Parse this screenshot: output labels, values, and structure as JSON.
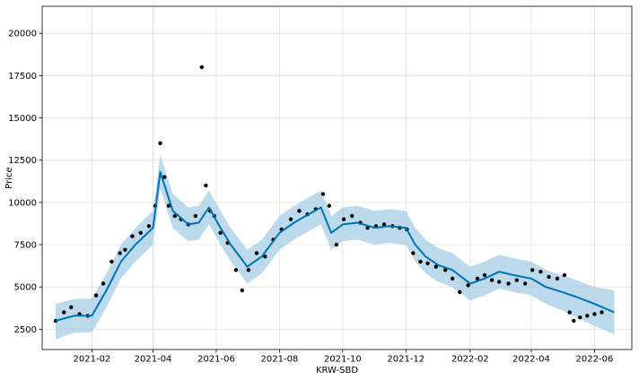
{
  "chart_data": {
    "type": "line",
    "title": "",
    "xlabel": "KRW-SBD",
    "ylabel": "Price",
    "x_ticks": [
      "2021-02",
      "2021-04",
      "2021-06",
      "2021-08",
      "2021-10",
      "2021-12",
      "2022-02",
      "2022-04",
      "2022-06"
    ],
    "y_ticks": [
      2500,
      5000,
      7500,
      10000,
      12500,
      15000,
      17500,
      20000
    ],
    "xlim": [
      "2020-12-15",
      "2022-07-07"
    ],
    "ylim": [
      1300,
      21600
    ],
    "grid": true,
    "colors": {
      "forecast": "#0072B2",
      "interval": "#a6cde6",
      "observed": "#000000"
    },
    "series": [
      {
        "role": "forecast",
        "x": [
          "2020-12-28",
          "2021-01-15",
          "2021-02-01",
          "2021-02-15",
          "2021-03-01",
          "2021-03-15",
          "2021-04-01",
          "2021-04-08",
          "2021-04-20",
          "2021-05-05",
          "2021-05-15",
          "2021-05-25",
          "2021-06-05",
          "2021-06-15",
          "2021-07-01",
          "2021-07-15",
          "2021-08-01",
          "2021-08-15",
          "2021-09-01",
          "2021-09-10",
          "2021-09-20",
          "2021-10-01",
          "2021-10-15",
          "2021-11-01",
          "2021-11-15",
          "2021-12-01",
          "2021-12-10",
          "2021-12-20",
          "2022-01-01",
          "2022-01-15",
          "2022-02-01",
          "2022-02-15",
          "2022-03-01",
          "2022-03-15",
          "2022-04-01",
          "2022-04-15",
          "2022-05-01",
          "2022-05-15",
          "2022-06-01",
          "2022-06-20"
        ],
        "values": [
          3000,
          3300,
          3300,
          4800,
          6500,
          7500,
          8500,
          11800,
          9500,
          8700,
          8800,
          9700,
          8500,
          7500,
          6200,
          6800,
          8200,
          8800,
          9400,
          9700,
          8200,
          8700,
          8800,
          8500,
          8600,
          8500,
          7500,
          6800,
          6300,
          6000,
          5200,
          5500,
          5900,
          5700,
          5500,
          5000,
          4700,
          4400,
          4000,
          3500
        ]
      },
      {
        "role": "interval",
        "x": [
          "2020-12-28",
          "2021-01-15",
          "2021-02-01",
          "2021-02-15",
          "2021-03-01",
          "2021-03-15",
          "2021-04-01",
          "2021-04-08",
          "2021-04-20",
          "2021-05-05",
          "2021-05-15",
          "2021-05-25",
          "2021-06-05",
          "2021-06-15",
          "2021-07-01",
          "2021-07-15",
          "2021-08-01",
          "2021-08-15",
          "2021-09-01",
          "2021-09-10",
          "2021-09-20",
          "2021-10-01",
          "2021-10-15",
          "2021-11-01",
          "2021-11-15",
          "2021-12-01",
          "2021-12-10",
          "2021-12-20",
          "2022-01-01",
          "2022-01-15",
          "2022-02-01",
          "2022-02-15",
          "2022-03-01",
          "2022-03-15",
          "2022-04-01",
          "2022-04-15",
          "2022-05-01",
          "2022-05-15",
          "2022-06-01",
          "2022-06-20"
        ],
        "upper": [
          4000,
          4300,
          4300,
          5800,
          7500,
          8500,
          9500,
          12800,
          10500,
          9700,
          9800,
          10700,
          9500,
          8500,
          7200,
          7800,
          9200,
          9800,
          10400,
          10700,
          9200,
          9700,
          9800,
          9500,
          9600,
          9500,
          8500,
          7800,
          7300,
          7000,
          6200,
          6500,
          6900,
          6700,
          6500,
          6000,
          5700,
          5400,
          5000,
          4800
        ],
        "lower": [
          1900,
          2300,
          2300,
          3800,
          5500,
          6500,
          7500,
          10800,
          8500,
          7700,
          7800,
          8700,
          7500,
          6500,
          5200,
          5800,
          7200,
          7800,
          8400,
          8700,
          7200,
          7700,
          7800,
          7500,
          7600,
          7500,
          6500,
          5800,
          5300,
          5000,
          4200,
          4500,
          4900,
          4700,
          4500,
          4000,
          3600,
          3200,
          2700,
          2200
        ]
      },
      {
        "role": "observed",
        "x": [
          "2020-12-28",
          "2021-01-05",
          "2021-01-12",
          "2021-01-20",
          "2021-01-28",
          "2021-02-05",
          "2021-02-12",
          "2021-02-20",
          "2021-02-28",
          "2021-03-05",
          "2021-03-12",
          "2021-03-20",
          "2021-03-28",
          "2021-04-03",
          "2021-04-08",
          "2021-04-12",
          "2021-04-16",
          "2021-04-22",
          "2021-04-28",
          "2021-05-05",
          "2021-05-12",
          "2021-05-18",
          "2021-05-22",
          "2021-05-26",
          "2021-05-30",
          "2021-06-05",
          "2021-06-12",
          "2021-06-20",
          "2021-06-26",
          "2021-07-02",
          "2021-07-10",
          "2021-07-18",
          "2021-07-26",
          "2021-08-03",
          "2021-08-12",
          "2021-08-20",
          "2021-08-28",
          "2021-09-05",
          "2021-09-12",
          "2021-09-18",
          "2021-09-25",
          "2021-10-02",
          "2021-10-10",
          "2021-10-18",
          "2021-10-25",
          "2021-11-02",
          "2021-11-10",
          "2021-11-18",
          "2021-11-25",
          "2021-12-02",
          "2021-12-08",
          "2021-12-15",
          "2021-12-22",
          "2021-12-30",
          "2022-01-08",
          "2022-01-15",
          "2022-01-22",
          "2022-01-30",
          "2022-02-08",
          "2022-02-15",
          "2022-02-22",
          "2022-03-01",
          "2022-03-10",
          "2022-03-18",
          "2022-03-26",
          "2022-04-02",
          "2022-04-10",
          "2022-04-18",
          "2022-04-26",
          "2022-05-03",
          "2022-05-08",
          "2022-05-12",
          "2022-05-18",
          "2022-05-25",
          "2022-06-01",
          "2022-06-08"
        ],
        "values": [
          3000,
          3500,
          3800,
          3400,
          3300,
          4500,
          5200,
          6500,
          7000,
          7200,
          8000,
          8200,
          8600,
          9800,
          13500,
          11500,
          9800,
          9200,
          9000,
          8700,
          9200,
          18000,
          11000,
          9500,
          9200,
          8200,
          7600,
          6000,
          4800,
          6000,
          7000,
          6800,
          7800,
          8400,
          9000,
          9500,
          9300,
          9600,
          10500,
          9800,
          7500,
          9000,
          9200,
          8800,
          8500,
          8600,
          8700,
          8600,
          8500,
          8400,
          7000,
          6500,
          6400,
          6200,
          6000,
          5500,
          4700,
          5100,
          5500,
          5700,
          5400,
          5300,
          5200,
          5400,
          5200,
          6000,
          5900,
          5600,
          5500,
          5700,
          3500,
          3000,
          3200,
          3300,
          3400,
          3500
        ]
      }
    ]
  }
}
